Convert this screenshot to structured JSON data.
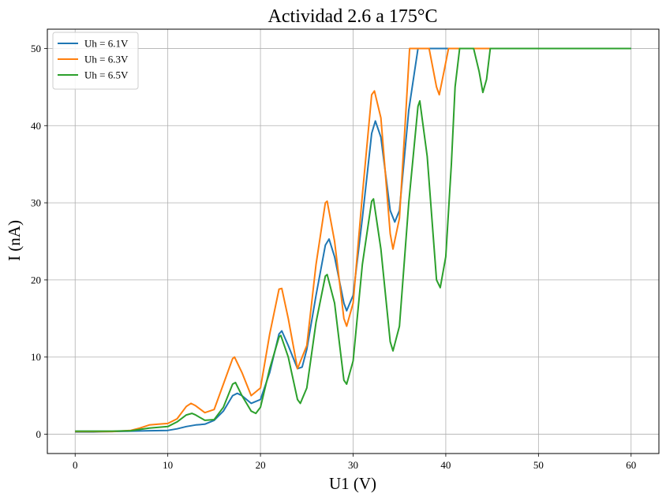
{
  "chart_data": {
    "type": "line",
    "title": "Actividad 2.6 a 175°C",
    "xlabel": "U1 (V)",
    "ylabel": "I (nA)",
    "xlim": [
      -3,
      63
    ],
    "ylim": [
      -2.5,
      52.5
    ],
    "xticks": [
      0,
      10,
      20,
      30,
      40,
      50,
      60
    ],
    "yticks": [
      0,
      10,
      20,
      30,
      40,
      50
    ],
    "grid": true,
    "legend_position": "top-left",
    "series": [
      {
        "name": "Uh = 6.1V",
        "color": "#1f77b4",
        "points": [
          [
            0,
            0.3
          ],
          [
            2,
            0.3
          ],
          [
            4,
            0.35
          ],
          [
            6,
            0.4
          ],
          [
            8,
            0.45
          ],
          [
            10,
            0.5
          ],
          [
            11,
            0.7
          ],
          [
            12,
            1.0
          ],
          [
            13,
            1.2
          ],
          [
            14,
            1.3
          ],
          [
            15,
            1.8
          ],
          [
            16,
            3.0
          ],
          [
            17,
            5.0
          ],
          [
            17.5,
            5.3
          ],
          [
            18,
            5.0
          ],
          [
            19,
            4.0
          ],
          [
            20,
            4.5
          ],
          [
            21,
            8.0
          ],
          [
            22,
            13.0
          ],
          [
            22.3,
            13.4
          ],
          [
            23,
            11.5
          ],
          [
            24,
            8.5
          ],
          [
            24.5,
            8.7
          ],
          [
            25,
            11.0
          ],
          [
            26,
            18.0
          ],
          [
            27,
            24.5
          ],
          [
            27.4,
            25.3
          ],
          [
            28,
            23.0
          ],
          [
            29,
            17.0
          ],
          [
            29.3,
            16.0
          ],
          [
            30,
            18.0
          ],
          [
            31,
            28.0
          ],
          [
            32,
            39.0
          ],
          [
            32.4,
            40.6
          ],
          [
            33,
            38.5
          ],
          [
            34,
            29.0
          ],
          [
            34.5,
            27.5
          ],
          [
            35,
            29.0
          ],
          [
            36,
            42.0
          ],
          [
            37,
            50.0
          ],
          [
            60,
            50.0
          ]
        ]
      },
      {
        "name": "Uh = 6.3V",
        "color": "#ff7f0e",
        "points": [
          [
            0,
            0.35
          ],
          [
            2,
            0.35
          ],
          [
            4,
            0.35
          ],
          [
            6,
            0.5
          ],
          [
            7,
            0.8
          ],
          [
            8,
            1.2
          ],
          [
            9,
            1.3
          ],
          [
            10,
            1.4
          ],
          [
            11,
            2.0
          ],
          [
            12,
            3.6
          ],
          [
            12.5,
            4.0
          ],
          [
            13,
            3.7
          ],
          [
            14,
            2.8
          ],
          [
            15,
            3.2
          ],
          [
            16,
            6.5
          ],
          [
            17,
            9.8
          ],
          [
            17.2,
            10.0
          ],
          [
            18,
            8.0
          ],
          [
            19,
            5.0
          ],
          [
            20,
            6.0
          ],
          [
            21,
            13.0
          ],
          [
            22,
            18.8
          ],
          [
            22.3,
            18.9
          ],
          [
            23,
            15.0
          ],
          [
            24,
            8.5
          ],
          [
            25,
            11.5
          ],
          [
            26,
            22.0
          ],
          [
            27,
            30.0
          ],
          [
            27.2,
            30.2
          ],
          [
            28,
            25.0
          ],
          [
            29,
            15.0
          ],
          [
            29.3,
            14.0
          ],
          [
            30,
            17.0
          ],
          [
            31,
            31.0
          ],
          [
            32,
            44.0
          ],
          [
            32.3,
            44.5
          ],
          [
            33,
            41.0
          ],
          [
            34,
            26.0
          ],
          [
            34.3,
            24.0
          ],
          [
            35,
            28.0
          ],
          [
            35.6,
            40.0
          ],
          [
            36.1,
            50.0
          ],
          [
            38.2,
            50.0
          ],
          [
            39,
            45.0
          ],
          [
            39.3,
            44.0
          ],
          [
            39.8,
            47.0
          ],
          [
            40.3,
            50.0
          ],
          [
            45,
            50.0
          ]
        ]
      },
      {
        "name": "Uh = 6.5V",
        "color": "#2ca02c",
        "points": [
          [
            0,
            0.4
          ],
          [
            2,
            0.4
          ],
          [
            4,
            0.4
          ],
          [
            6,
            0.45
          ],
          [
            8,
            0.8
          ],
          [
            10,
            1.0
          ],
          [
            11,
            1.6
          ],
          [
            12,
            2.5
          ],
          [
            12.6,
            2.7
          ],
          [
            13,
            2.5
          ],
          [
            14,
            1.8
          ],
          [
            15,
            1.9
          ],
          [
            16,
            3.5
          ],
          [
            17,
            6.5
          ],
          [
            17.3,
            6.7
          ],
          [
            18,
            5.0
          ],
          [
            19,
            3.0
          ],
          [
            19.5,
            2.7
          ],
          [
            20,
            3.5
          ],
          [
            21,
            8.5
          ],
          [
            22,
            12.6
          ],
          [
            22.2,
            12.8
          ],
          [
            23,
            10.0
          ],
          [
            24,
            4.5
          ],
          [
            24.3,
            4.0
          ],
          [
            25,
            6.0
          ],
          [
            26,
            14.5
          ],
          [
            27,
            20.5
          ],
          [
            27.2,
            20.7
          ],
          [
            28,
            17.0
          ],
          [
            29,
            7.0
          ],
          [
            29.3,
            6.5
          ],
          [
            30,
            9.5
          ],
          [
            31,
            22.0
          ],
          [
            32,
            30.2
          ],
          [
            32.2,
            30.5
          ],
          [
            33,
            24.0
          ],
          [
            34,
            12.0
          ],
          [
            34.3,
            10.8
          ],
          [
            35,
            14.0
          ],
          [
            36,
            30.0
          ],
          [
            37,
            42.5
          ],
          [
            37.2,
            43.2
          ],
          [
            38,
            36.0
          ],
          [
            39,
            20.0
          ],
          [
            39.4,
            19.0
          ],
          [
            40,
            23.0
          ],
          [
            40.6,
            35.0
          ],
          [
            41,
            45.0
          ],
          [
            41.5,
            50.0
          ],
          [
            43,
            50.0
          ],
          [
            43.6,
            47.0
          ],
          [
            44,
            44.3
          ],
          [
            44.4,
            46.0
          ],
          [
            44.8,
            50.0
          ],
          [
            60,
            50.0
          ]
        ]
      }
    ]
  }
}
